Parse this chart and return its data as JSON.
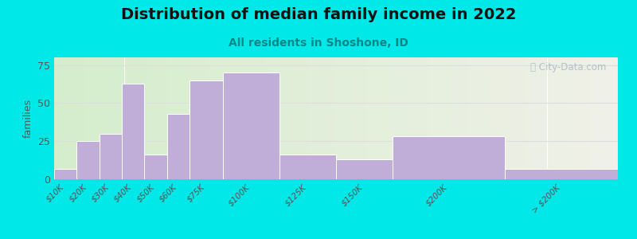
{
  "title": "Distribution of median family income in 2022",
  "subtitle": "All residents in Shoshone, ID",
  "ylabel": "families",
  "categories": [
    "$10K",
    "$20K",
    "$30K",
    "$40K",
    "$50K",
    "$60K",
    "$75K",
    "$100K",
    "$125K",
    "$150K",
    "$200K",
    "> $200K"
  ],
  "left_edges": [
    0,
    10,
    20,
    30,
    40,
    50,
    60,
    75,
    100,
    125,
    150,
    200
  ],
  "widths": [
    10,
    10,
    10,
    10,
    10,
    10,
    15,
    25,
    25,
    25,
    50,
    50
  ],
  "values": [
    7,
    25,
    30,
    63,
    16,
    43,
    65,
    70,
    16,
    13,
    28,
    7
  ],
  "bar_color": "#c0aed8",
  "bar_edge_color": "#ffffff",
  "background_outer": "#00e8e8",
  "plot_bg_left_color": "#d4edcc",
  "plot_bg_right_color": "#f0f0e8",
  "yticks": [
    0,
    25,
    50,
    75
  ],
  "ylim": [
    0,
    80
  ],
  "xlim_left": 0,
  "xlim_right": 250,
  "title_fontsize": 14,
  "subtitle_fontsize": 10,
  "subtitle_color": "#008888",
  "ylabel_fontsize": 9,
  "watermark_text": "ⓘ City-Data.com",
  "watermark_color": "#aabbcc"
}
